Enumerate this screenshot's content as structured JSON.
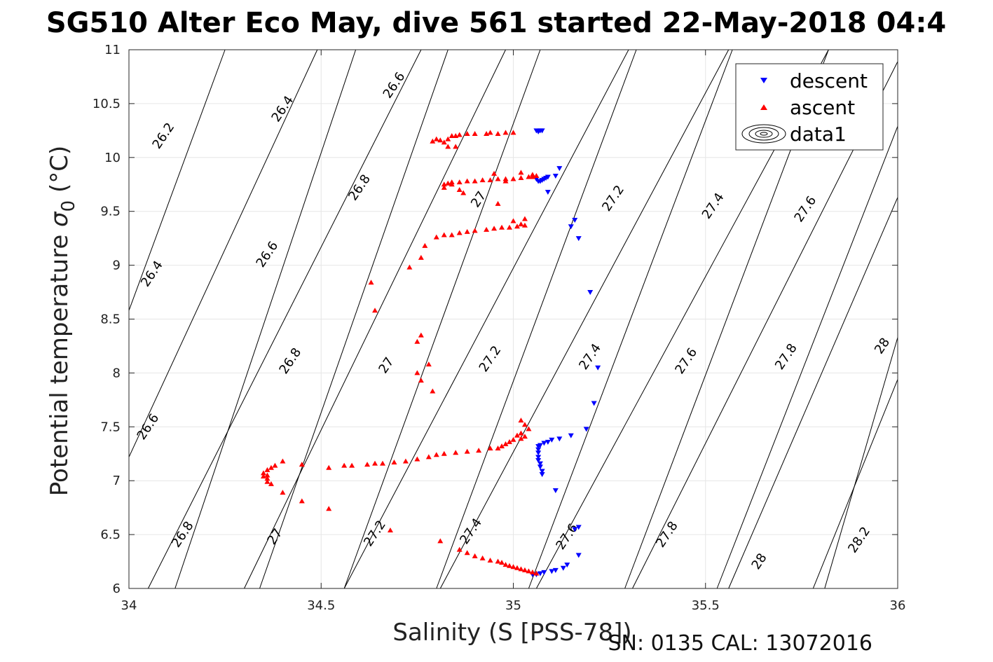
{
  "title": "SG510 Alter Eco May, dive 561 started 22-May-2018 04:4",
  "footer": "SN: 0135  CAL: 13072016",
  "colors": {
    "descent": "#0000ff",
    "ascent": "#ff0000",
    "grid": "#e6e6e6",
    "contour": "#000000"
  },
  "chart_data": {
    "type": "scatter",
    "xlabel": "Salinity (S [PSS-78])",
    "ylabel_main": "Potential temperature ",
    "ylabel_sym": "σ",
    "ylabel_sub": "0",
    "ylabel_unit": " (°C)",
    "xlim": [
      34,
      36
    ],
    "ylim": [
      6,
      11
    ],
    "xticks": [
      34,
      34.5,
      35,
      35.5,
      36
    ],
    "xtick_labels": [
      "34",
      "34.5",
      "35",
      "35.5",
      "36"
    ],
    "yticks": [
      6,
      6.5,
      7,
      7.5,
      8,
      8.5,
      9,
      9.5,
      10,
      10.5,
      11
    ],
    "ytick_labels": [
      "6",
      "6.5",
      "7",
      "7.5",
      "8",
      "8.5",
      "9",
      "9.5",
      "10",
      "10.5",
      "11"
    ],
    "grid": true,
    "legend_position": "top-right",
    "legend": [
      "descent",
      "ascent",
      "data1"
    ],
    "contours": [
      {
        "level": 26.2,
        "text": "26.2",
        "points": [
          [
            34.12,
            6.0
          ],
          [
            34.59,
            11.0
          ]
        ]
      },
      {
        "level": 26.4,
        "text": "26.4",
        "points": [
          [
            34.0,
            8.58
          ],
          [
            34.25,
            11.0
          ]
        ]
      },
      {
        "level": 26.4,
        "text": "26.4",
        "points": [
          [
            34.34,
            6.0
          ],
          [
            34.83,
            11.0
          ]
        ]
      },
      {
        "level": 26.6,
        "text": "26.6",
        "points": [
          [
            34.0,
            7.22
          ],
          [
            34.49,
            11.0
          ]
        ]
      },
      {
        "level": 26.6,
        "text": "26.6",
        "points": [
          [
            34.56,
            6.0
          ],
          [
            35.07,
            11.0
          ]
        ]
      },
      {
        "level": 26.8,
        "text": "26.8",
        "points": [
          [
            34.05,
            6.0
          ],
          [
            34.76,
            11.0
          ]
        ]
      },
      {
        "level": 26.8,
        "text": "26.8",
        "points": [
          [
            34.8,
            6.0
          ],
          [
            35.32,
            11.0
          ]
        ]
      },
      {
        "level": 27.0,
        "text": "27",
        "points": [
          [
            34.3,
            6.0
          ],
          [
            34.98,
            11.0
          ]
        ]
      },
      {
        "level": 27.0,
        "text": "27",
        "points": [
          [
            35.04,
            6.0
          ],
          [
            35.57,
            11.0
          ]
        ]
      },
      {
        "level": 27.2,
        "text": "27.2",
        "points": [
          [
            34.56,
            6.0
          ],
          [
            35.3,
            11.0
          ]
        ]
      },
      {
        "level": 27.2,
        "text": "27.2",
        "points": [
          [
            35.29,
            6.0
          ],
          [
            35.82,
            11.0
          ]
        ]
      },
      {
        "level": 27.4,
        "text": "27.4",
        "points": [
          [
            34.81,
            6.0
          ],
          [
            35.56,
            11.0
          ]
        ]
      },
      {
        "level": 27.4,
        "text": "27.4",
        "points": [
          [
            35.53,
            6.0
          ],
          [
            36.0,
            10.29
          ]
        ]
      },
      {
        "level": 27.6,
        "text": "27.6",
        "points": [
          [
            35.06,
            6.0
          ],
          [
            35.82,
            11.0
          ]
        ]
      },
      {
        "level": 27.6,
        "text": "27.6",
        "points": [
          [
            35.78,
            6.0
          ],
          [
            36.0,
            7.94
          ]
        ]
      },
      {
        "level": 27.8,
        "text": "27.8",
        "points": [
          [
            35.31,
            6.0
          ],
          [
            36.0,
            10.89
          ]
        ]
      },
      {
        "level": 28.0,
        "text": "28",
        "points": [
          [
            35.56,
            6.0
          ],
          [
            36.0,
            9.63
          ]
        ]
      },
      {
        "level": 28.2,
        "text": "28.2",
        "points": [
          [
            35.81,
            6.0
          ],
          [
            36.0,
            8.33
          ]
        ]
      }
    ],
    "contour_labels": [
      {
        "text": "26.2",
        "x": 34.09,
        "y": 10.2
      },
      {
        "text": "26.4",
        "x": 34.4,
        "y": 10.45
      },
      {
        "text": "26.6",
        "x": 34.69,
        "y": 10.67
      },
      {
        "text": "26.4",
        "x": 34.06,
        "y": 8.92
      },
      {
        "text": "26.6",
        "x": 34.36,
        "y": 9.1
      },
      {
        "text": "26.8",
        "x": 34.6,
        "y": 9.72
      },
      {
        "text": "27",
        "x": 34.91,
        "y": 9.61
      },
      {
        "text": "27.2",
        "x": 35.26,
        "y": 9.62
      },
      {
        "text": "27.4",
        "x": 35.52,
        "y": 9.55
      },
      {
        "text": "27.6",
        "x": 35.76,
        "y": 9.52
      },
      {
        "text": "26.6",
        "x": 34.05,
        "y": 7.5
      },
      {
        "text": "26.8",
        "x": 34.42,
        "y": 8.11
      },
      {
        "text": "27",
        "x": 34.67,
        "y": 8.07
      },
      {
        "text": "27.2",
        "x": 34.94,
        "y": 8.13
      },
      {
        "text": "27.4",
        "x": 35.2,
        "y": 8.15
      },
      {
        "text": "27.6",
        "x": 35.45,
        "y": 8.11
      },
      {
        "text": "27.8",
        "x": 35.71,
        "y": 8.15
      },
      {
        "text": "28",
        "x": 35.96,
        "y": 8.25
      },
      {
        "text": "26.8",
        "x": 34.14,
        "y": 6.5
      },
      {
        "text": "27",
        "x": 34.38,
        "y": 6.48
      },
      {
        "text": "27.2",
        "x": 34.64,
        "y": 6.51
      },
      {
        "text": "27.4",
        "x": 34.89,
        "y": 6.53
      },
      {
        "text": "27.6",
        "x": 35.14,
        "y": 6.48
      },
      {
        "text": "27.8",
        "x": 35.4,
        "y": 6.5
      },
      {
        "text": "28",
        "x": 35.64,
        "y": 6.25
      },
      {
        "text": "28.2",
        "x": 35.9,
        "y": 6.45
      }
    ],
    "series": [
      {
        "name": "descent",
        "marker": "triangle-down",
        "points": [
          [
            35.06,
            10.25
          ],
          [
            35.07,
            10.25
          ],
          [
            35.065,
            10.24
          ],
          [
            35.075,
            10.25
          ],
          [
            35.12,
            9.9
          ],
          [
            35.11,
            9.83
          ],
          [
            35.09,
            9.82
          ],
          [
            35.085,
            9.81
          ],
          [
            35.08,
            9.8
          ],
          [
            35.075,
            9.79
          ],
          [
            35.07,
            9.78
          ],
          [
            35.065,
            9.78
          ],
          [
            35.06,
            9.8
          ],
          [
            35.09,
            9.68
          ],
          [
            35.16,
            9.42
          ],
          [
            35.15,
            9.36
          ],
          [
            35.17,
            9.25
          ],
          [
            35.2,
            8.75
          ],
          [
            35.22,
            8.05
          ],
          [
            35.21,
            7.72
          ],
          [
            35.19,
            7.48
          ],
          [
            35.15,
            7.42
          ],
          [
            35.12,
            7.39
          ],
          [
            35.1,
            7.38
          ],
          [
            35.09,
            7.36
          ],
          [
            35.08,
            7.35
          ],
          [
            35.07,
            7.33
          ],
          [
            35.065,
            7.32
          ],
          [
            35.065,
            7.29
          ],
          [
            35.065,
            7.26
          ],
          [
            35.065,
            7.22
          ],
          [
            35.065,
            7.19
          ],
          [
            35.07,
            7.16
          ],
          [
            35.07,
            7.13
          ],
          [
            35.075,
            7.09
          ],
          [
            35.075,
            7.06
          ],
          [
            35.11,
            6.91
          ],
          [
            35.17,
            6.57
          ],
          [
            35.16,
            6.55
          ],
          [
            35.17,
            6.31
          ],
          [
            35.14,
            6.22
          ],
          [
            35.13,
            6.19
          ],
          [
            35.11,
            6.17
          ],
          [
            35.1,
            6.16
          ],
          [
            35.08,
            6.15
          ],
          [
            35.07,
            6.14
          ],
          [
            35.06,
            6.13
          ],
          [
            35.05,
            6.13
          ]
        ]
      },
      {
        "name": "ascent",
        "marker": "triangle-up",
        "points": [
          [
            34.79,
            10.15
          ],
          [
            34.8,
            10.17
          ],
          [
            34.81,
            10.16
          ],
          [
            34.83,
            10.17
          ],
          [
            34.82,
            10.14
          ],
          [
            34.84,
            10.2
          ],
          [
            34.85,
            10.2
          ],
          [
            34.86,
            10.21
          ],
          [
            34.88,
            10.22
          ],
          [
            34.9,
            10.22
          ],
          [
            34.93,
            10.22
          ],
          [
            34.94,
            10.23
          ],
          [
            34.96,
            10.22
          ],
          [
            34.98,
            10.23
          ],
          [
            35.0,
            10.23
          ],
          [
            34.83,
            10.1
          ],
          [
            34.85,
            10.1
          ],
          [
            34.82,
            9.75
          ],
          [
            34.83,
            9.76
          ],
          [
            34.84,
            9.77
          ],
          [
            34.86,
            9.77
          ],
          [
            34.88,
            9.78
          ],
          [
            34.9,
            9.78
          ],
          [
            34.92,
            9.79
          ],
          [
            34.94,
            9.79
          ],
          [
            34.96,
            9.8
          ],
          [
            34.98,
            9.8
          ],
          [
            35.0,
            9.8
          ],
          [
            35.02,
            9.81
          ],
          [
            35.04,
            9.82
          ],
          [
            35.05,
            9.84
          ],
          [
            35.06,
            9.83
          ],
          [
            35.05,
            9.82
          ],
          [
            35.02,
            9.86
          ],
          [
            34.82,
            9.72
          ],
          [
            34.84,
            9.75
          ],
          [
            34.86,
            9.7
          ],
          [
            34.95,
            9.85
          ],
          [
            34.98,
            9.78
          ],
          [
            34.87,
            9.67
          ],
          [
            34.96,
            9.57
          ],
          [
            35.03,
            9.43
          ],
          [
            35.02,
            9.38
          ],
          [
            35.0,
            9.41
          ],
          [
            35.01,
            9.36
          ],
          [
            35.03,
            9.37
          ],
          [
            34.99,
            9.35
          ],
          [
            34.97,
            9.35
          ],
          [
            34.95,
            9.34
          ],
          [
            34.93,
            9.33
          ],
          [
            34.9,
            9.32
          ],
          [
            34.88,
            9.31
          ],
          [
            34.86,
            9.3
          ],
          [
            34.84,
            9.28
          ],
          [
            34.82,
            9.28
          ],
          [
            34.8,
            9.26
          ],
          [
            34.77,
            9.18
          ],
          [
            34.76,
            9.07
          ],
          [
            34.73,
            8.98
          ],
          [
            34.63,
            8.84
          ],
          [
            34.64,
            8.58
          ],
          [
            34.76,
            8.35
          ],
          [
            34.75,
            8.29
          ],
          [
            34.78,
            8.08
          ],
          [
            34.75,
            8.0
          ],
          [
            34.76,
            7.93
          ],
          [
            34.79,
            7.83
          ],
          [
            35.02,
            7.56
          ],
          [
            35.03,
            7.52
          ],
          [
            35.04,
            7.48
          ],
          [
            35.02,
            7.44
          ],
          [
            35.01,
            7.42
          ],
          [
            35.03,
            7.41
          ],
          [
            35.02,
            7.39
          ],
          [
            35.0,
            7.38
          ],
          [
            34.99,
            7.36
          ],
          [
            34.98,
            7.34
          ],
          [
            34.97,
            7.32
          ],
          [
            34.96,
            7.3
          ],
          [
            34.94,
            7.3
          ],
          [
            34.91,
            7.28
          ],
          [
            34.88,
            7.27
          ],
          [
            34.85,
            7.26
          ],
          [
            34.82,
            7.25
          ],
          [
            34.8,
            7.24
          ],
          [
            34.78,
            7.22
          ],
          [
            34.75,
            7.2
          ],
          [
            34.72,
            7.18
          ],
          [
            34.69,
            7.17
          ],
          [
            34.66,
            7.16
          ],
          [
            34.64,
            7.16
          ],
          [
            34.62,
            7.15
          ],
          [
            34.58,
            7.14
          ],
          [
            34.56,
            7.14
          ],
          [
            34.52,
            7.12
          ],
          [
            34.45,
            7.15
          ],
          [
            34.4,
            7.18
          ],
          [
            34.38,
            7.14
          ],
          [
            34.37,
            7.12
          ],
          [
            34.36,
            7.1
          ],
          [
            34.35,
            7.07
          ],
          [
            34.35,
            7.04
          ],
          [
            34.36,
            7.02
          ],
          [
            34.36,
            6.99
          ],
          [
            34.37,
            6.97
          ],
          [
            34.36,
            7.05
          ],
          [
            34.4,
            6.89
          ],
          [
            34.45,
            6.81
          ],
          [
            34.52,
            6.74
          ],
          [
            34.68,
            6.54
          ],
          [
            34.81,
            6.44
          ],
          [
            34.86,
            6.36
          ],
          [
            34.88,
            6.33
          ],
          [
            34.9,
            6.3
          ],
          [
            34.92,
            6.28
          ],
          [
            34.94,
            6.26
          ],
          [
            34.96,
            6.25
          ],
          [
            34.97,
            6.24
          ],
          [
            34.98,
            6.22
          ],
          [
            34.99,
            6.21
          ],
          [
            35.0,
            6.2
          ],
          [
            35.01,
            6.19
          ],
          [
            35.02,
            6.18
          ],
          [
            35.03,
            6.17
          ],
          [
            35.04,
            6.16
          ],
          [
            35.05,
            6.15
          ],
          [
            35.06,
            6.14
          ]
        ]
      }
    ]
  }
}
